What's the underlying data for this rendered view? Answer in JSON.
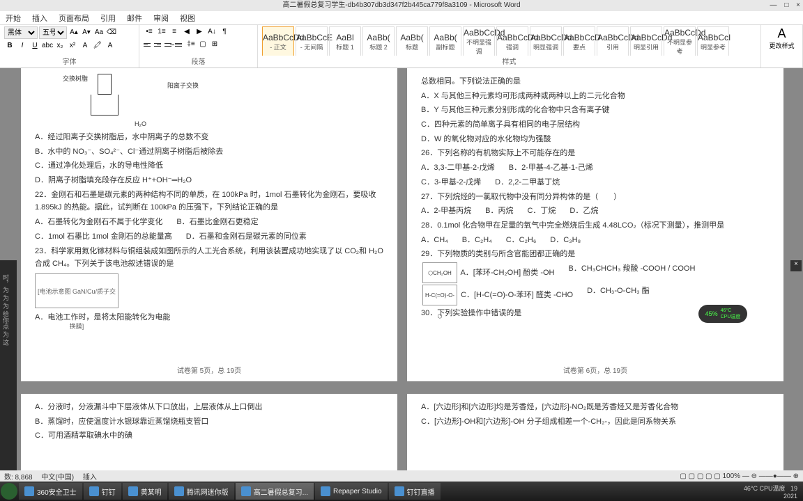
{
  "window": {
    "title": "高二暑假总复习学生-db4b307db3d347f2b445ca779f8a3109 - Microsoft Word"
  },
  "menu": {
    "items": [
      "开始",
      "插入",
      "页面布局",
      "引用",
      "邮件",
      "审阅",
      "视图"
    ]
  },
  "ribbon": {
    "font": {
      "family": "黑体",
      "size": "五号",
      "group_label": "字体"
    },
    "paragraph": {
      "group_label": "段落"
    },
    "styles": {
      "items": [
        {
          "preview": "AaBbCcDd",
          "name": "- 正文",
          "active": true
        },
        {
          "preview": "AaBbCcE",
          "name": "- 无间隔"
        },
        {
          "preview": "AaBl",
          "name": "标题 1"
        },
        {
          "preview": "AaBb(",
          "name": "标题 2"
        },
        {
          "preview": "AaBb(",
          "name": "标题"
        },
        {
          "preview": "AaBb(",
          "name": "副标题"
        },
        {
          "preview": "AaBbCcDd",
          "name": "不明显强调"
        },
        {
          "preview": "AaBbCcDd",
          "name": "强调"
        },
        {
          "preview": "AaBbCcDd",
          "name": "明显强调"
        },
        {
          "preview": "AaBbCcD",
          "name": "要点"
        },
        {
          "preview": "AaBbCcDd",
          "name": "引用"
        },
        {
          "preview": "AaBbCcDd",
          "name": "明显引用"
        },
        {
          "preview": "AaBbCcDd",
          "name": "不明显参考"
        },
        {
          "preview": "AaBbCcI",
          "name": "明显参考"
        }
      ],
      "group_label": "样式",
      "change_styles": "更改样式"
    }
  },
  "doc": {
    "left_page": {
      "label_exchange": "交换树脂",
      "label_cation": "阳离子交换",
      "label_h2o": "H₂O",
      "qA": "A．经过阳离子交换树脂后，水中阴离子的总数不变",
      "qB": "B．水中的 NO₃⁻、SO₄²⁻、Cl⁻通过阴离子树脂后被除去",
      "qC": "C．通过净化处理后，水的导电性降低",
      "qD": "D．阴离子树脂填充段存在反应 H⁺+OH⁻═H₂O",
      "q22": "22．金刚石和石墨是碳元素的两种结构不同的单质，在 100kPa 时，1mol 石墨转化为金刚石，要吸收 1.895kJ 的热能。据此，试判断在 100kPa 的压强下，下列结论正确的是",
      "q22A": "A．石墨转化为金刚石不属于化学变化",
      "q22B": "B．石墨比金刚石更稳定",
      "q22C": "C．1mol 石墨比 1mol 金刚石的总能量高",
      "q22D": "D．石墨和金刚石是碳元素的同位素",
      "q23": "23．科学家用氮化镓材料与铜组装成如图所示的人工光合系统，利用该装置成功地实现了以 CO₂和 H₂O 合成 CH₄。下列关于该电池叙述错误的是",
      "diagram_label": "[电池示意图 GaN/Cu/质子交换膜]",
      "q23A": "A．电池工作时，是将太阳能转化为电能",
      "page_num": "试卷第 5页，总 19页"
    },
    "left_page2": {
      "qA": "A．分液时，分液漏斗中下层液体从下口放出，上层液体从上口倒出",
      "qB": "B．蒸馏时，应使温度计水银球靠近蒸馏烧瓶支管口",
      "qC": "C．可用酒精萃取碘水中的碘"
    },
    "right_page": {
      "q_top": "总数相同。下列说法正确的是",
      "qA": "A．X 与其他三种元素均可形成两种或两种以上的二元化合物",
      "qB": "B．Y 与其他三种元素分别形成的化合物中只含有离子键",
      "qC": "C．四种元素的简单离子具有相同的电子层结构",
      "qD": "D．W 的氧化物对应的水化物均为强酸",
      "q26": "26．下列名称的有机物实际上不可能存在的是",
      "q26A": "A．3,3-二甲基-2-戊烯",
      "q26B": "B．2-甲基-4-乙基-1-己烯",
      "q26C": "C．3-甲基-2-戊烯",
      "q26D": "D．2,2-二甲基丁烷",
      "q27": "27．下列烷烃的一氯取代物中没有同分异构体的是（　　）",
      "q27A": "A．2-甲基丙烷",
      "q27B": "B．丙烷",
      "q27C": "C．丁烷",
      "q27D": "D．乙烷",
      "q28": "28．0.1mol 化合物甲在足量的氧气中完全燃烧后生成 4.48LCO₂（标况下测量），推测甲是",
      "q28A": "A．CH₄",
      "q28B": "B．C₂H₄",
      "q28C": "C．C₂H₆",
      "q28D": "D．C₃H₈",
      "q29": "29．下列物质的类别与所含官能团都正确的是",
      "q29A": "A．[苯环-CH₂OH] 酚类 -OH",
      "q29B": "B．CH₃CHCH₃ 羧酸 -COOH / COOH",
      "q29C": "C．[H-C(=O)-O-苯环] 醛类 -CHO",
      "q29D": "D．CH₃-O-CH₃ 酯",
      "q30": "30．下列实验操作中错误的是",
      "page_num": "试卷第 6页，总 19页"
    },
    "right_page2": {
      "qA": "A．[六边形]和[六边形]均是芳香烃，[六边形]-NO₂既是芳香烃又是芳香化合物",
      "qC": "C．[六边形]-OH和[六边形]-OH 分子组成相差一个-CH₂-，因此是同系物关系"
    }
  },
  "statusbar": {
    "words": "数: 8,868",
    "lang": "中文(中国)",
    "mode": "插入",
    "zoom": "100%"
  },
  "cpu": {
    "percent": "45%",
    "temp": "46°C",
    "label": "CPU温度"
  },
  "taskbar": {
    "items": [
      {
        "name": "360安全卫士"
      },
      {
        "name": "钉钉"
      },
      {
        "name": "黄某明"
      },
      {
        "name": "腾讯网迷你版"
      },
      {
        "name": "高二暑假总复习..."
      },
      {
        "name": "Repaper Studio"
      },
      {
        "name": "钉钉直播"
      }
    ],
    "temp": "46°C",
    "temp_label": "CPU温度",
    "time": "19",
    "date": "2021"
  }
}
